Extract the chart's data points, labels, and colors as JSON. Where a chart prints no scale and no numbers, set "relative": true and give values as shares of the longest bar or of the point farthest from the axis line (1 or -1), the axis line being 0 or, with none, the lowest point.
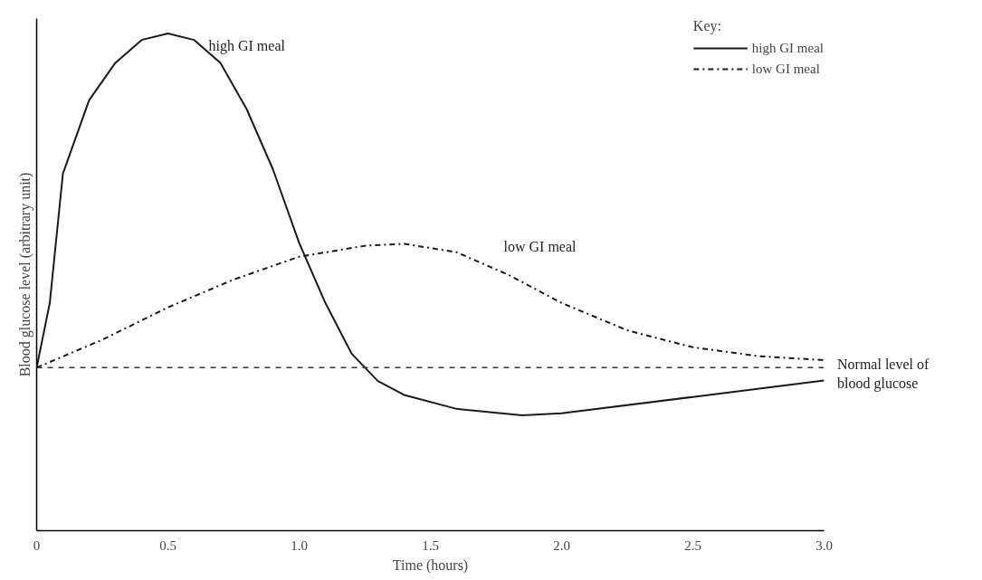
{
  "chart_data": {
    "type": "line",
    "relative": true,
    "xlabel": "Time (hours)",
    "ylabel": "Blood glucose level (arbitrary unit)",
    "legend_title": "Key:",
    "legend": "top right",
    "grid": false,
    "marker": "none",
    "xlim": [
      0,
      3.0
    ],
    "xticks": [
      0,
      0.5,
      {
        "value": 1,
        "label": "1.0"
      },
      1.5,
      {
        "value": 2,
        "label": "2.0"
      },
      2.5,
      {
        "value": 3,
        "label": "3.0"
      }
    ],
    "series": [
      {
        "name": "high GI meal",
        "color": "#1a1a1a",
        "line_style": "solid",
        "x": [
          0,
          0.05,
          0.1,
          0.2,
          0.3,
          0.4,
          0.5,
          0.6,
          0.7,
          0.8,
          0.9,
          1.0,
          1.1,
          1.2,
          1.3,
          1.4,
          1.6,
          1.85,
          2.0,
          2.5,
          3.0
        ],
        "values": [
          0.328,
          0.458,
          0.718,
          0.866,
          0.941,
          0.987,
          1.0,
          0.987,
          0.941,
          0.848,
          0.727,
          0.579,
          0.458,
          0.356,
          0.301,
          0.273,
          0.245,
          0.232,
          0.236,
          0.269,
          0.302
        ]
      },
      {
        "name": "low GI meal",
        "color": "#1a1a1a",
        "line_style": "dashdot",
        "x": [
          0,
          0.25,
          0.5,
          0.75,
          1.0,
          1.25,
          1.4,
          1.6,
          1.8,
          2.0,
          2.25,
          2.5,
          2.75,
          3.0
        ],
        "values": [
          0.328,
          0.384,
          0.449,
          0.505,
          0.551,
          0.573,
          0.577,
          0.56,
          0.514,
          0.458,
          0.403,
          0.369,
          0.351,
          0.343
        ]
      }
    ],
    "annotations": [
      "high GI meal",
      "low GI meal"
    ],
    "ref_lines": [
      {
        "axis": "y",
        "value": 0.328,
        "label": "Normal level of blood glucose",
        "color": "#333333",
        "line_style": "dashed"
      }
    ]
  }
}
